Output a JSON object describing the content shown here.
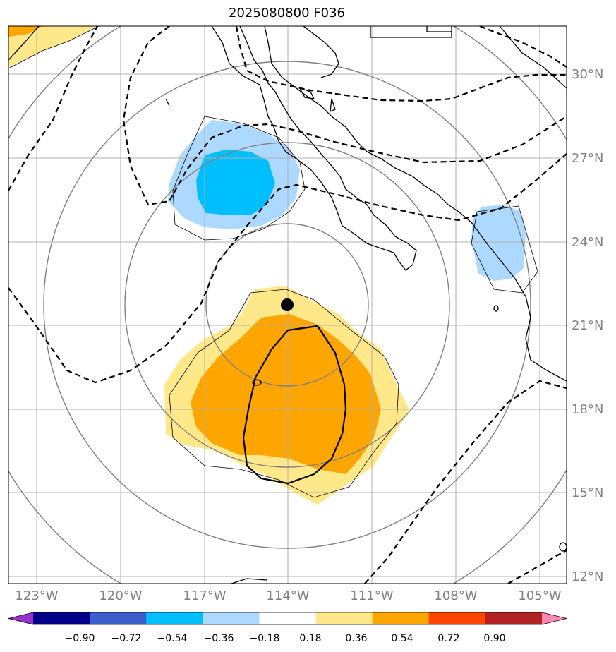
{
  "title": "2025080800 F036",
  "map": {
    "lat_labels": [
      "30°N",
      "27°N",
      "24°N",
      "21°N",
      "18°N",
      "15°N",
      "12°N"
    ],
    "lon_labels": [
      "123°W",
      "120°W",
      "117°W",
      "114°W",
      "111°W",
      "108°W",
      "105°W"
    ],
    "storm_center": {
      "lat": 21.7,
      "lon": -114.0
    },
    "grid": true
  },
  "colorbar": {
    "ticks": [
      "−0.90",
      "−0.72",
      "−0.54",
      "−0.36",
      "−0.18",
      "0.18",
      "0.36",
      "0.54",
      "0.72",
      "0.90"
    ],
    "colors": [
      "#9932cc",
      "#00008b",
      "#3a5fcd",
      "#00bfff",
      "#add8ff",
      "#ffffff",
      "#ffe88a",
      "#ffa500",
      "#ff4500",
      "#b22222",
      "#ff88b0"
    ]
  }
}
